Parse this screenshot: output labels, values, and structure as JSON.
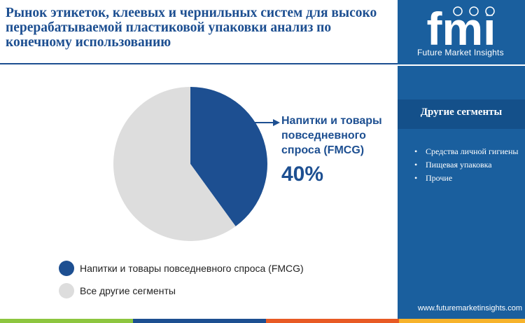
{
  "title": "Рынок этикеток, клеевых и чернильных систем для высоко перерабатываемой пластиковой упаковки анализ по конечному использованию",
  "brand": {
    "logo_text": "fmi",
    "name": "Future Market Insights",
    "url": "www.futuremarketinsights.com"
  },
  "sidebar": {
    "title": "Другие сегменты",
    "items": [
      "Средства личной гигиены",
      "Пищевая упаковка",
      "Прочие"
    ]
  },
  "callout": {
    "label": "Напитки и товары повседневного спроса (FMCG)",
    "value": "40%"
  },
  "colors": {
    "primary": "#1d4f91",
    "sidebar": "#1a5f9e",
    "other_segments": "#dddddd",
    "bottom_bar": [
      "#8dc63f",
      "#1d4f91",
      "#e85a24",
      "#f7b32b"
    ]
  },
  "chart_data": {
    "type": "pie",
    "labels": [
      "Напитки и товары повседневного спроса (FMCG)",
      "Все другие сегменты"
    ],
    "values": [
      40,
      60
    ],
    "colors": [
      "#1d4f91",
      "#dddddd"
    ],
    "start": "12 o'clock",
    "direction": "clockwise",
    "legend_position": "bottom-left"
  }
}
